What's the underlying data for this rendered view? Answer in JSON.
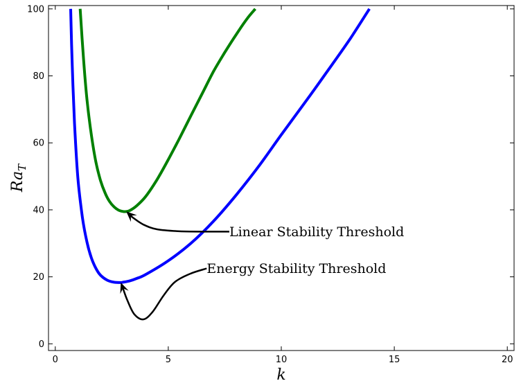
{
  "chart_data": {
    "type": "line",
    "title": "",
    "xlabel": "k",
    "ylabel": "Ra",
    "ylabel_subscript": "T",
    "xlim": [
      -0.3,
      20.3
    ],
    "ylim": [
      -2,
      101
    ],
    "xticks": [
      0,
      5,
      10,
      15,
      20
    ],
    "yticks": [
      0,
      20,
      40,
      60,
      80,
      100
    ],
    "grid": false,
    "legend": "none",
    "series": [
      {
        "color": "#008000",
        "x": [
          1.1,
          1.25,
          1.4,
          1.6,
          1.8,
          2.0,
          2.2,
          2.4,
          2.6,
          2.8,
          3.0,
          3.14,
          3.3,
          3.6,
          4.0,
          4.5,
          5.0,
          5.5,
          6.0,
          6.5,
          7.0,
          7.5,
          8.0,
          8.5,
          8.85
        ],
        "y": [
          100,
          85,
          73,
          62.2,
          54.2,
          48.8,
          45.1,
          42.5,
          40.9,
          39.9,
          39.5,
          39.5,
          39.8,
          41.2,
          44.0,
          49.0,
          55.0,
          61.4,
          68.1,
          74.7,
          81.3,
          87.0,
          92.3,
          97.2,
          100
        ]
      },
      {
        "color": "#0000ff",
        "x": [
          0.68,
          0.75,
          0.85,
          1.0,
          1.2,
          1.4,
          1.6,
          1.8,
          2.0,
          2.3,
          2.6,
          2.9,
          3.0,
          3.3,
          3.6,
          4.0,
          5.0,
          6.0,
          7.0,
          8.0,
          9.0,
          10.0,
          11.0,
          12.0,
          13.0,
          13.9
        ],
        "y": [
          100,
          83,
          66,
          49.5,
          37.8,
          30.4,
          25.6,
          22.5,
          20.5,
          19.0,
          18.4,
          18.3,
          18.4,
          18.8,
          19.5,
          20.7,
          24.8,
          30.0,
          36.6,
          44.4,
          53.0,
          62.4,
          71.6,
          81.0,
          90.6,
          100
        ]
      }
    ],
    "annotations": [
      {
        "text": "Linear Stability Threshold",
        "text_x": 7.7,
        "text_y": 33.5,
        "arrow_to": [
          3.14,
          39.5
        ],
        "path": [
          [
            7.7,
            33.5
          ],
          [
            6.6,
            33.5
          ],
          [
            5.5,
            33.6
          ],
          [
            4.5,
            34.2
          ],
          [
            3.9,
            35.6
          ],
          [
            3.45,
            37.6
          ],
          [
            3.14,
            39.5
          ]
        ]
      },
      {
        "text": "Energy Stability Threshold",
        "text_x": 6.7,
        "text_y": 22.5,
        "arrow_to": [
          2.9,
          18.3
        ],
        "path": [
          [
            6.7,
            22.5
          ],
          [
            6.0,
            21.0
          ],
          [
            5.3,
            18.5
          ],
          [
            4.8,
            14.5
          ],
          [
            4.3,
            9.5
          ],
          [
            3.9,
            7.3
          ],
          [
            3.5,
            8.8
          ],
          [
            3.2,
            12.8
          ],
          [
            2.9,
            18.3
          ]
        ]
      }
    ]
  }
}
